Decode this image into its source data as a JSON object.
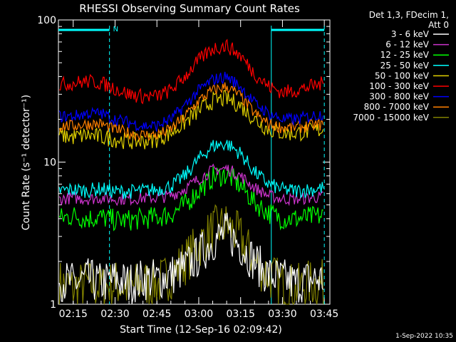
{
  "chart_data": {
    "type": "line",
    "title": "RHESSI Observing Summary Count Rates",
    "xlabel": "Start Time (12-Sep-16 02:09:42)",
    "ylabel": "Count Rate (s⁻¹ detector⁻¹)",
    "yscale": "log",
    "ylim": [
      1,
      100
    ],
    "xlim": [
      "02:09:42",
      "03:47:00"
    ],
    "x_ticks": [
      "02:15",
      "02:30",
      "02:45",
      "03:00",
      "03:15",
      "03:30",
      "03:45"
    ],
    "y_ticks": [
      "1",
      "10",
      "100"
    ],
    "grid": false,
    "legend_position": "outside right",
    "legend_header": [
      "Det 1,3, FDecim 1,",
      "Att 0"
    ],
    "annotations": {
      "night_marker": "N",
      "timestamp": "1-Sep-2022 10:35",
      "night_intervals": [
        [
          "02:09:42",
          "02:28:00"
        ],
        [
          "03:26:00",
          "03:45:00"
        ]
      ]
    },
    "x": [
      "02:10",
      "02:15",
      "02:20",
      "02:25",
      "02:30",
      "02:35",
      "02:40",
      "02:45",
      "02:50",
      "02:55",
      "03:00",
      "03:05",
      "03:10",
      "03:15",
      "03:20",
      "03:25",
      "03:30",
      "03:35",
      "03:40",
      "03:45"
    ],
    "series": [
      {
        "name": "3 - 6 keV",
        "color": "#ffffff",
        "values": [
          1.5,
          1.4,
          1.5,
          1.4,
          1.5,
          1.4,
          1.5,
          1.5,
          1.6,
          1.8,
          2.2,
          2.8,
          3.2,
          2.6,
          2.0,
          1.6,
          1.5,
          1.4,
          1.5,
          1.5
        ]
      },
      {
        "name": "6 - 12 keV",
        "color": "#cc33cc",
        "values": [
          5.5,
          5.6,
          5.5,
          5.6,
          5.5,
          5.5,
          5.6,
          5.6,
          5.8,
          6.5,
          7.6,
          8.8,
          9.0,
          8.0,
          6.6,
          5.8,
          5.5,
          5.5,
          5.6,
          5.7
        ]
      },
      {
        "name": "12 - 25 keV",
        "color": "#00ff00",
        "values": [
          4.0,
          4.2,
          4.0,
          4.1,
          3.9,
          3.9,
          4.0,
          4.1,
          4.3,
          5.0,
          6.3,
          7.8,
          8.2,
          6.8,
          5.2,
          4.4,
          4.0,
          4.0,
          4.1,
          4.2
        ]
      },
      {
        "name": "25 - 50 keV",
        "color": "#00ffff",
        "values": [
          6.3,
          6.4,
          6.3,
          6.5,
          6.2,
          6.2,
          6.3,
          6.4,
          6.8,
          8.0,
          10.5,
          13.0,
          13.5,
          11.5,
          8.5,
          7.0,
          6.4,
          6.3,
          6.4,
          6.6
        ]
      },
      {
        "name": "50 - 100 keV",
        "color": "#e0d000",
        "values": [
          15.5,
          15.0,
          15.5,
          15.0,
          14.5,
          14.0,
          14.0,
          14.5,
          16.0,
          19.0,
          23.0,
          27.0,
          28.0,
          25.0,
          20.0,
          17.0,
          16.0,
          16.0,
          16.5,
          17.0
        ]
      },
      {
        "name": "100 - 300 keV",
        "color": "#ff0000",
        "values": [
          35,
          36,
          37,
          36,
          33,
          30,
          29,
          29,
          32,
          40,
          52,
          63,
          66,
          56,
          42,
          34,
          31,
          32,
          34,
          36
        ]
      },
      {
        "name": "300 - 800 keV",
        "color": "#0000ff",
        "values": [
          21,
          21,
          22,
          22,
          20,
          19,
          18,
          18,
          20,
          25,
          32,
          38,
          40,
          34,
          26,
          22,
          20,
          20,
          21,
          22
        ]
      },
      {
        "name": "800 - 7000 keV",
        "color": "#ff8000",
        "values": [
          18.0,
          18.0,
          18.5,
          18.5,
          17.0,
          16.0,
          15.5,
          15.5,
          17.0,
          21.0,
          27.0,
          32.0,
          34.0,
          29.0,
          22.0,
          18.5,
          17.5,
          17.5,
          18.0,
          18.5
        ]
      },
      {
        "name": "7000 - 15000 keV",
        "color": "#808000",
        "values": [
          1.4,
          1.3,
          1.4,
          1.3,
          1.4,
          1.3,
          1.4,
          1.4,
          1.6,
          2.0,
          2.6,
          3.3,
          3.6,
          2.9,
          2.0,
          1.6,
          1.4,
          1.3,
          1.4,
          1.4
        ]
      }
    ]
  }
}
